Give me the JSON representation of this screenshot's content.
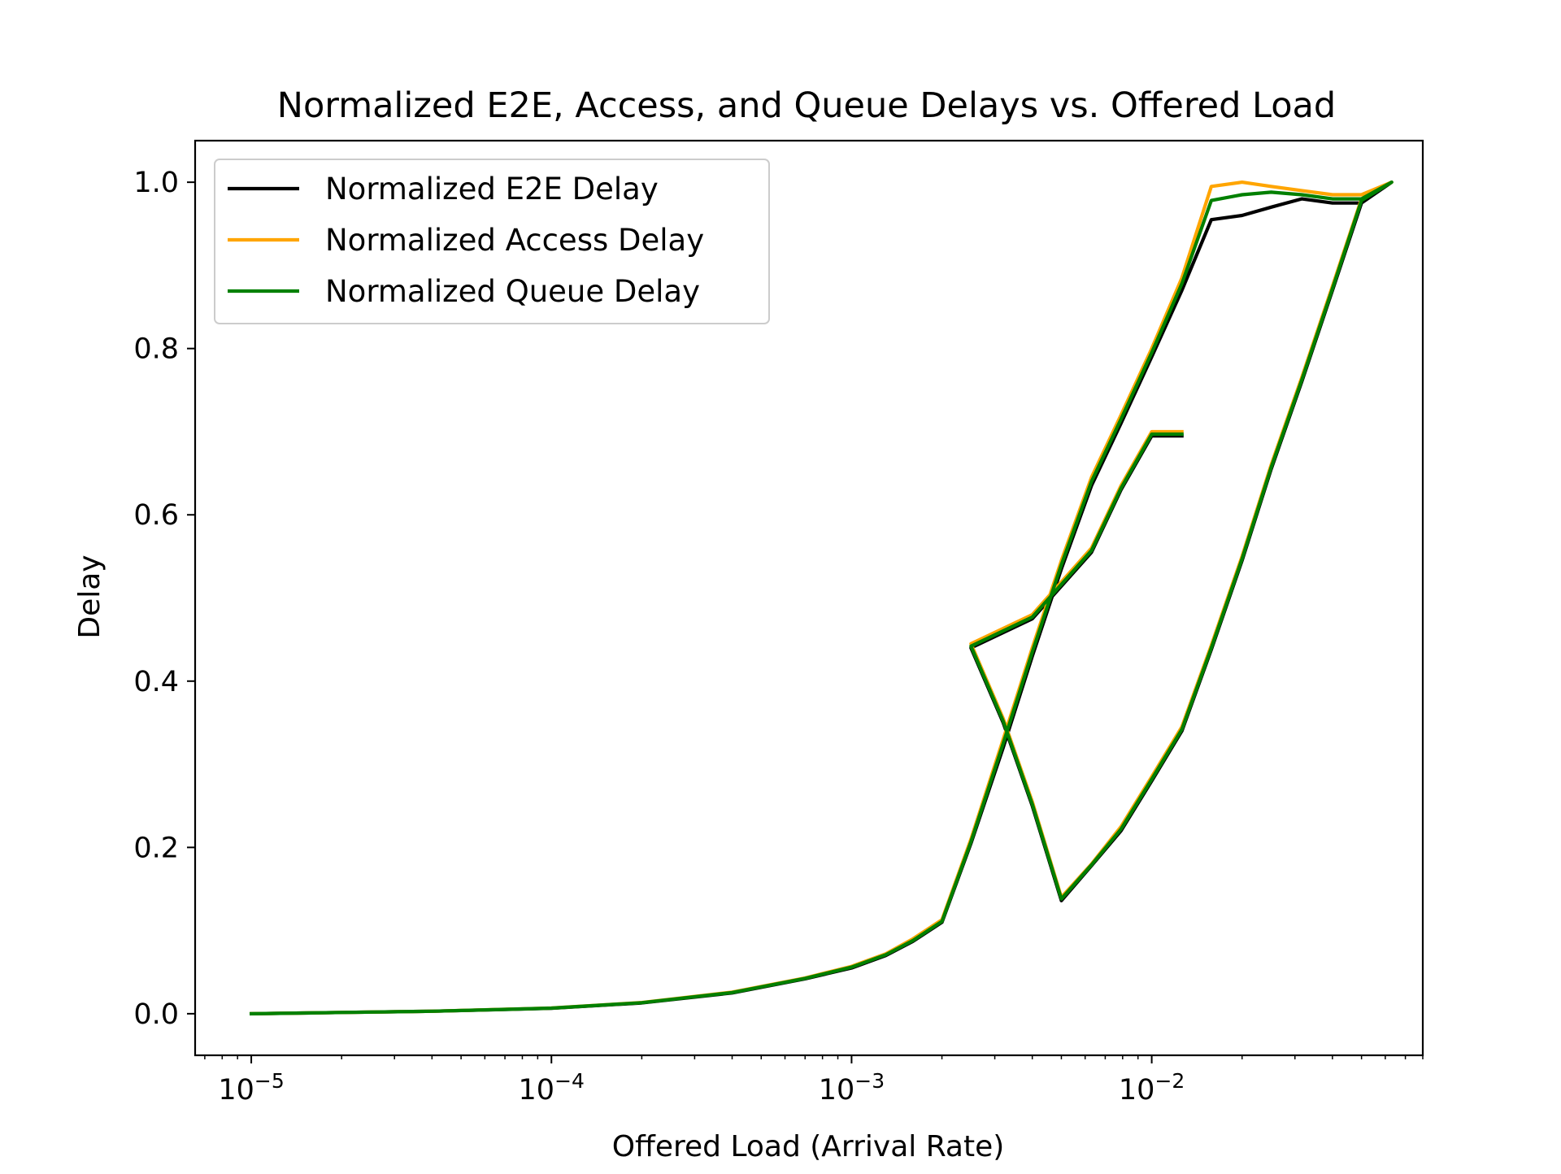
{
  "chart_data": {
    "type": "line",
    "title": "Normalized E2E, Access, and Queue Delays vs. Offered Load",
    "xlabel": "Offered Load (Arrival Rate)",
    "ylabel": "Delay",
    "xscale": "log",
    "xlim": [
      6.5e-06,
      0.08
    ],
    "ylim": [
      -0.05,
      1.05
    ],
    "x_tick_labels": [
      {
        "value": 1e-05,
        "base": "10",
        "exp": "−5"
      },
      {
        "value": 0.0001,
        "base": "10",
        "exp": "−4"
      },
      {
        "value": 0.001,
        "base": "10",
        "exp": "−3"
      },
      {
        "value": 0.01,
        "base": "10",
        "exp": "−2"
      }
    ],
    "y_ticks": [
      {
        "value": 0.0,
        "label": "0.0"
      },
      {
        "value": 0.2,
        "label": "0.2"
      },
      {
        "value": 0.4,
        "label": "0.4"
      },
      {
        "value": 0.6,
        "label": "0.6"
      },
      {
        "value": 0.8,
        "label": "0.8"
      },
      {
        "value": 1.0,
        "label": "1.0"
      }
    ],
    "grid": false,
    "legend_position": "top-left",
    "series": [
      {
        "name": "Normalized E2E Delay",
        "color": "#000000",
        "x": [
          1e-05,
          2e-05,
          4e-05,
          0.0001,
          0.0002,
          0.0004,
          0.0007,
          0.001,
          0.0013,
          0.0016,
          0.002,
          0.0025,
          0.0032,
          0.004,
          0.005,
          0.0063,
          0.0079,
          0.01,
          0.0126,
          0.0158,
          0.02,
          0.025,
          0.0316,
          0.04,
          0.05,
          0.063,
          0.05,
          0.04,
          0.0316,
          0.025,
          0.02,
          0.0158,
          0.0126,
          0.01,
          0.0079,
          0.0063,
          0.005,
          0.004,
          0.0032,
          0.0025,
          0.004,
          0.0063,
          0.0079,
          0.01,
          0.0126
        ],
        "y": [
          0.0,
          0.0015,
          0.003,
          0.0065,
          0.013,
          0.025,
          0.042,
          0.055,
          0.07,
          0.087,
          0.11,
          0.205,
          0.32,
          0.43,
          0.535,
          0.635,
          0.71,
          0.79,
          0.87,
          0.955,
          0.96,
          0.97,
          0.98,
          0.975,
          0.975,
          1.0,
          0.975,
          0.87,
          0.76,
          0.655,
          0.545,
          0.438,
          0.34,
          0.28,
          0.22,
          0.178,
          0.136,
          0.25,
          0.35,
          0.44,
          0.475,
          0.555,
          0.63,
          0.695,
          0.695
        ]
      },
      {
        "name": "Normalized Access Delay",
        "color": "#ffa500",
        "x": [
          1e-05,
          2e-05,
          4e-05,
          0.0001,
          0.0002,
          0.0004,
          0.0007,
          0.001,
          0.0013,
          0.0016,
          0.002,
          0.0025,
          0.0032,
          0.004,
          0.005,
          0.0063,
          0.0079,
          0.01,
          0.0126,
          0.0158,
          0.02,
          0.025,
          0.0316,
          0.04,
          0.05,
          0.063,
          0.05,
          0.04,
          0.0316,
          0.025,
          0.02,
          0.0158,
          0.0126,
          0.01,
          0.0079,
          0.0063,
          0.005,
          0.004,
          0.0032,
          0.0025,
          0.004,
          0.0063,
          0.0079,
          0.01,
          0.0126
        ],
        "y": [
          0.0,
          0.0015,
          0.003,
          0.0068,
          0.0135,
          0.026,
          0.043,
          0.057,
          0.072,
          0.09,
          0.113,
          0.21,
          0.33,
          0.44,
          0.545,
          0.645,
          0.72,
          0.8,
          0.885,
          0.995,
          1.0,
          0.995,
          0.99,
          0.985,
          0.985,
          1.0,
          0.98,
          0.875,
          0.765,
          0.66,
          0.55,
          0.443,
          0.345,
          0.285,
          0.225,
          0.18,
          0.14,
          0.255,
          0.355,
          0.445,
          0.48,
          0.56,
          0.635,
          0.7,
          0.7
        ]
      },
      {
        "name": "Normalized Queue Delay",
        "color": "#008000",
        "x": [
          1e-05,
          2e-05,
          4e-05,
          0.0001,
          0.0002,
          0.0004,
          0.0007,
          0.001,
          0.0013,
          0.0016,
          0.002,
          0.0025,
          0.0032,
          0.004,
          0.005,
          0.0063,
          0.0079,
          0.01,
          0.0126,
          0.0158,
          0.02,
          0.025,
          0.0316,
          0.04,
          0.05,
          0.063,
          0.05,
          0.04,
          0.0316,
          0.025,
          0.02,
          0.0158,
          0.0126,
          0.01,
          0.0079,
          0.0063,
          0.005,
          0.004,
          0.0032,
          0.0025,
          0.004,
          0.0063,
          0.0079,
          0.01,
          0.0126
        ],
        "y": [
          0.0,
          0.0015,
          0.003,
          0.0067,
          0.0133,
          0.0255,
          0.0425,
          0.056,
          0.071,
          0.088,
          0.111,
          0.207,
          0.325,
          0.435,
          0.54,
          0.64,
          0.715,
          0.795,
          0.878,
          0.978,
          0.985,
          0.988,
          0.985,
          0.98,
          0.98,
          1.0,
          0.978,
          0.872,
          0.762,
          0.657,
          0.547,
          0.44,
          0.342,
          0.282,
          0.222,
          0.179,
          0.138,
          0.252,
          0.352,
          0.442,
          0.477,
          0.557,
          0.632,
          0.697,
          0.697
        ]
      }
    ]
  }
}
